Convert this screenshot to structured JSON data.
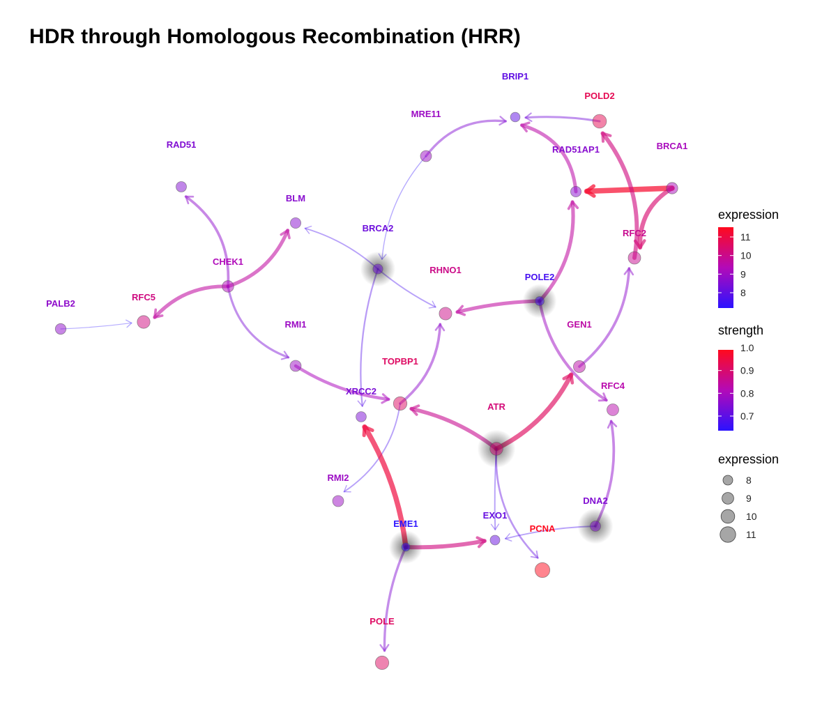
{
  "title": "HDR through Homologous Recombination (HRR)",
  "colors": {
    "low": "#2b12ff",
    "mid": "#c50aa3",
    "high": "#ff0a1e"
  },
  "nodes": [
    {
      "id": "BRIP1",
      "label": "BRIP1",
      "expression": 8.0
    },
    {
      "id": "POLD2",
      "label": "POLD2",
      "expression": 10.6
    },
    {
      "id": "MRE11",
      "label": "MRE11",
      "expression": 8.9
    },
    {
      "id": "RAD51AP1",
      "label": "RAD51AP1",
      "expression": 8.6
    },
    {
      "id": "BRCA1",
      "label": "BRCA1",
      "expression": 9.1
    },
    {
      "id": "RAD51",
      "label": "RAD51",
      "expression": 8.5
    },
    {
      "id": "BLM",
      "label": "BLM",
      "expression": 8.6
    },
    {
      "id": "BRCA2",
      "label": "BRCA2",
      "expression": 8.2
    },
    {
      "id": "RFC2",
      "label": "RFC2",
      "expression": 9.8
    },
    {
      "id": "CHEK1",
      "label": "CHEK1",
      "expression": 9.2
    },
    {
      "id": "RHNO1",
      "label": "RHNO1",
      "expression": 9.9
    },
    {
      "id": "POLE2",
      "label": "POLE2",
      "expression": 7.6
    },
    {
      "id": "PALB2",
      "label": "PALB2",
      "expression": 8.7
    },
    {
      "id": "RFC5",
      "label": "RFC5",
      "expression": 10.0
    },
    {
      "id": "RMI1",
      "label": "RMI1",
      "expression": 8.9
    },
    {
      "id": "GEN1",
      "label": "GEN1",
      "expression": 9.5
    },
    {
      "id": "TOPBP1",
      "label": "TOPBP1",
      "expression": 10.4
    },
    {
      "id": "RFC4",
      "label": "RFC4",
      "expression": 9.4
    },
    {
      "id": "XRCC2",
      "label": "XRCC2",
      "expression": 8.4
    },
    {
      "id": "ATR",
      "label": "ATR",
      "expression": 10.1
    },
    {
      "id": "RMI2",
      "label": "RMI2",
      "expression": 8.9
    },
    {
      "id": "DNA2",
      "label": "DNA2",
      "expression": 8.5
    },
    {
      "id": "EXO1",
      "label": "EXO1",
      "expression": 8.1
    },
    {
      "id": "EME1",
      "label": "EME1",
      "expression": 7.2
    },
    {
      "id": "PCNA",
      "label": "PCNA",
      "expression": 11.3
    },
    {
      "id": "POLE",
      "label": "POLE",
      "expression": 10.4
    }
  ],
  "edges": [
    {
      "from": "POLD2",
      "to": "BRIP1",
      "strength": 0.72
    },
    {
      "from": "MRE11",
      "to": "BRIP1",
      "strength": 0.74
    },
    {
      "from": "MRE11",
      "to": "BRCA2",
      "strength": 0.63
    },
    {
      "from": "BRCA1",
      "to": "RAD51AP1",
      "strength": 0.98
    },
    {
      "from": "BRCA1",
      "to": "RFC2",
      "strength": 0.9
    },
    {
      "from": "RFC2",
      "to": "POLD2",
      "strength": 0.88
    },
    {
      "from": "RAD51AP1",
      "to": "BRIP1",
      "strength": 0.83
    },
    {
      "from": "POLE2",
      "to": "RAD51AP1",
      "strength": 0.84
    },
    {
      "from": "POLE2",
      "to": "RHNO1",
      "strength": 0.84
    },
    {
      "from": "POLE2",
      "to": "RFC4",
      "strength": 0.78
    },
    {
      "from": "BRCA2",
      "to": "BLM",
      "strength": 0.66
    },
    {
      "from": "BRCA2",
      "to": "RHNO1",
      "strength": 0.66
    },
    {
      "from": "BRCA2",
      "to": "XRCC2",
      "strength": 0.68
    },
    {
      "from": "CHEK1",
      "to": "RAD51",
      "strength": 0.76
    },
    {
      "from": "CHEK1",
      "to": "BLM",
      "strength": 0.84
    },
    {
      "from": "CHEK1",
      "to": "RFC5",
      "strength": 0.84
    },
    {
      "from": "CHEK1",
      "to": "RMI1",
      "strength": 0.73
    },
    {
      "from": "PALB2",
      "to": "RFC5",
      "strength": 0.62
    },
    {
      "from": "RMI1",
      "to": "TOPBP1",
      "strength": 0.8
    },
    {
      "from": "TOPBP1",
      "to": "RHNO1",
      "strength": 0.76
    },
    {
      "from": "TOPBP1",
      "to": "RMI2",
      "strength": 0.66
    },
    {
      "from": "ATR",
      "to": "TOPBP1",
      "strength": 0.86
    },
    {
      "from": "ATR",
      "to": "GEN1",
      "strength": 0.92
    },
    {
      "from": "ATR",
      "to": "EXO1",
      "strength": 0.66
    },
    {
      "from": "ATR",
      "to": "PCNA",
      "strength": 0.7
    },
    {
      "from": "GEN1",
      "to": "RFC2",
      "strength": 0.76
    },
    {
      "from": "DNA2",
      "to": "RFC4",
      "strength": 0.76
    },
    {
      "from": "DNA2",
      "to": "EXO1",
      "strength": 0.66
    },
    {
      "from": "EME1",
      "to": "XRCC2",
      "strength": 0.96
    },
    {
      "from": "EME1",
      "to": "EXO1",
      "strength": 0.88
    },
    {
      "from": "EME1",
      "to": "POLE",
      "strength": 0.74
    }
  ],
  "legend": {
    "expression_title": "expression",
    "expression_ticks": [
      "11",
      "10",
      "9",
      "8"
    ],
    "strength_title": "strength",
    "strength_ticks": [
      "1.0",
      "0.9",
      "0.8",
      "0.7"
    ],
    "size_title": "expression",
    "size_ticks": [
      "8",
      "9",
      "10",
      "11"
    ]
  }
}
